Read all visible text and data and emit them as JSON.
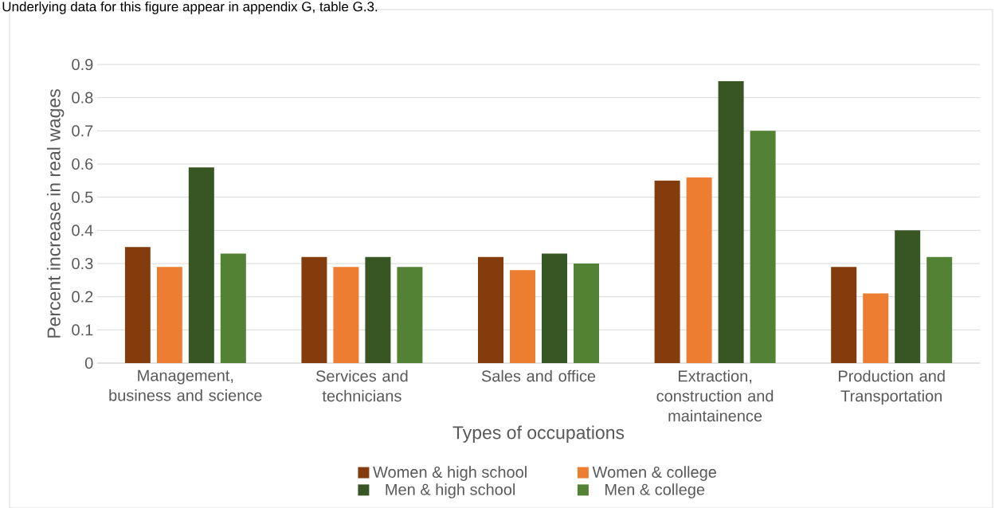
{
  "chart_data": {
    "type": "bar",
    "xlabel": "Types of occupations",
    "ylabel": "Percent increase in real wages",
    "categories": [
      "Management, business and science",
      "Services and technicians",
      "Sales and office",
      "Extraction, construction and maintainence",
      "Production and Transportation"
    ],
    "series": [
      {
        "name": "Women & high school",
        "color": "#843c0c",
        "values": [
          0.35,
          0.32,
          0.32,
          0.55,
          0.29
        ]
      },
      {
        "name": "Women & college",
        "color": "#ed7d31",
        "values": [
          0.29,
          0.29,
          0.28,
          0.56,
          0.21
        ]
      },
      {
        "name": "Men & high school",
        "color": "#375623",
        "values": [
          0.59,
          0.32,
          0.33,
          0.85,
          0.4
        ]
      },
      {
        "name": "Men & college",
        "color": "#548235",
        "values": [
          0.33,
          0.29,
          0.3,
          0.7,
          0.32
        ]
      }
    ],
    "ylim": [
      0,
      0.9
    ],
    "yticks": [
      0,
      0.1,
      0.2,
      0.3,
      0.4,
      0.5,
      0.6,
      0.7,
      0.8,
      0.9
    ],
    "grid": "y",
    "legend": "bottom",
    "annotations": [
      "Underlying data for this figure appear in appendix G, table G.3."
    ]
  }
}
